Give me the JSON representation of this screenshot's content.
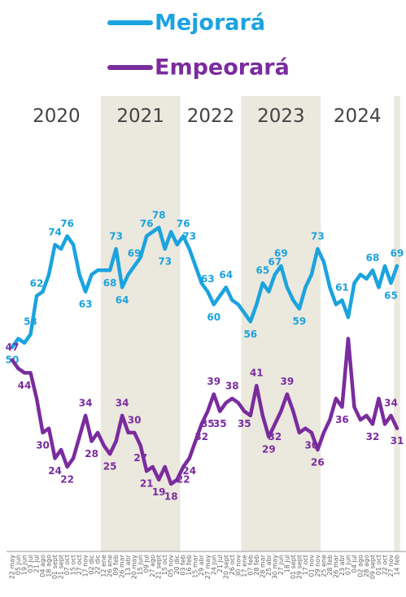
{
  "chart_data": {
    "type": "line",
    "categories": [
      "22 may",
      "05 jun",
      "19 jun",
      "03 jul",
      "21 jul",
      "04 ago",
      "18 ago",
      "01 sept",
      "21 sept",
      "07 oct",
      "15 oct",
      "27 oct",
      "17 nov",
      "02 dic",
      "22 dic",
      "12 ene",
      "26 ene",
      "09 feb",
      "26 mar",
      "13 abr",
      "20 may",
      "15 jun",
      "09 jul",
      "27 ago",
      "21 sept",
      "15 oct",
      "05 nov",
      "20 dic",
      "03 feb",
      "16 feb",
      "15 mar",
      "29 abr",
      "27 may",
      "24 jun",
      "21 jul",
      "20 sept",
      "26 oct",
      "30 nov",
      "17 ene",
      "07 feb",
      "28 feb",
      "28 mar",
      "25 abr",
      "30 may",
      "27 jun",
      "18 jul",
      "01 sept",
      "29 sept",
      "17 oct",
      "01 nov",
      "29 nov",
      "25 ene",
      "28 feb",
      "26 mar",
      "23 abr",
      "07 jun",
      "04 jul",
      "02 ago",
      "28 ago",
      "09 sept",
      "01 oct",
      "22 oct",
      "27 nov",
      "14 feb"
    ],
    "series": [
      {
        "name": "Mejorará",
        "color": "#1ba3df",
        "values": [
          50,
          52,
          51,
          53,
          62,
          63,
          67,
          74,
          73,
          76,
          74,
          67,
          63,
          67,
          68,
          68,
          68,
          73,
          64,
          67,
          69,
          71,
          76,
          77,
          78,
          73,
          77,
          74,
          76,
          73,
          69,
          65,
          63,
          60,
          62,
          64,
          61,
          60,
          58,
          56,
          60,
          65,
          63,
          67,
          69,
          64,
          61,
          59,
          64,
          67,
          73,
          70,
          64,
          60,
          61,
          57,
          65,
          67,
          66,
          68,
          64,
          69,
          65,
          69
        ],
        "value_labels": [
          "50",
          null,
          null,
          "53",
          "62",
          null,
          null,
          "74",
          null,
          "76",
          null,
          null,
          "63",
          null,
          null,
          null,
          "68",
          "73",
          "64",
          null,
          "69",
          null,
          "76",
          null,
          "78",
          "73",
          null,
          null,
          "76",
          "73",
          null,
          null,
          "63",
          "60",
          null,
          "64",
          null,
          null,
          null,
          "56",
          null,
          "65",
          null,
          "67",
          "69",
          null,
          null,
          "59",
          null,
          null,
          "73",
          null,
          null,
          null,
          "61",
          null,
          null,
          null,
          null,
          "68",
          null,
          null,
          "65",
          "69"
        ]
      },
      {
        "name": "Empeorará",
        "color": "#7a2c9e",
        "values": [
          47,
          45,
          44,
          44,
          38,
          30,
          31,
          24,
          26,
          22,
          24,
          29,
          34,
          28,
          30,
          27,
          25,
          28,
          34,
          30,
          30,
          27,
          21,
          22,
          19,
          22,
          18,
          19,
          22,
          24,
          28,
          32,
          35,
          39,
          35,
          37,
          38,
          37,
          35,
          34,
          41,
          34,
          29,
          32,
          35,
          39,
          35,
          30,
          31,
          30,
          26,
          30,
          33,
          38,
          36,
          52,
          36,
          33,
          34,
          32,
          38,
          32,
          34,
          31
        ],
        "value_labels": [
          "47",
          null,
          "44",
          null,
          null,
          "30",
          null,
          "24",
          null,
          "22",
          null,
          null,
          "34",
          "28",
          null,
          null,
          "25",
          null,
          "34",
          null,
          "30",
          "27",
          "21",
          null,
          "19",
          null,
          "18",
          null,
          "22",
          "24",
          null,
          "32",
          "35",
          "39",
          "35",
          null,
          "38",
          null,
          "35",
          null,
          "41",
          null,
          "29",
          "32",
          null,
          "39",
          null,
          null,
          null,
          "30",
          "26",
          null,
          null,
          null,
          "36",
          null,
          null,
          null,
          null,
          "32",
          null,
          null,
          "34",
          "31"
        ]
      }
    ],
    "ylim": [
      10,
      85
    ],
    "periods": [
      {
        "label": "2020",
        "from": "22 may",
        "to": "22 dic",
        "shaded": false
      },
      {
        "label": "2021",
        "from": "12 ene",
        "to": "20 dic",
        "shaded": true
      },
      {
        "label": "2022",
        "from": "03 feb",
        "to": "30 nov",
        "shaded": false
      },
      {
        "label": "2023",
        "from": "17 ene",
        "to": "29 nov",
        "shaded": true
      },
      {
        "label": "2024",
        "from": "25 ene",
        "to": "27 nov",
        "shaded": false
      },
      {
        "from": "14 feb",
        "to": "14 feb",
        "shaded": true
      }
    ]
  }
}
